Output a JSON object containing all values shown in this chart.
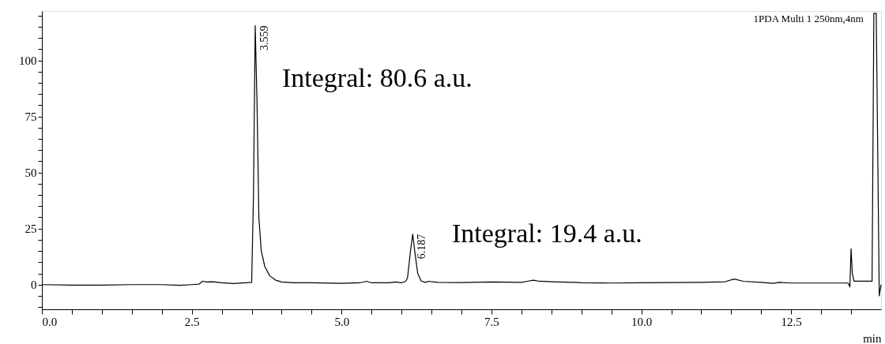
{
  "chart_data": {
    "type": "line",
    "xlabel": "min",
    "xlim": [
      0,
      14.0
    ],
    "ylim": [
      -11,
      122
    ],
    "xticks": [
      {
        "value": 0,
        "label": "0.0"
      },
      {
        "value": 0.5,
        "label": null
      },
      {
        "value": 1,
        "label": null
      },
      {
        "value": 1.5,
        "label": null
      },
      {
        "value": 2,
        "label": null
      },
      {
        "value": 2.5,
        "label": "2.5"
      },
      {
        "value": 3,
        "label": null
      },
      {
        "value": 3.5,
        "label": null
      },
      {
        "value": 4,
        "label": null
      },
      {
        "value": 4.5,
        "label": null
      },
      {
        "value": 5,
        "label": "5.0"
      },
      {
        "value": 5.5,
        "label": null
      },
      {
        "value": 6,
        "label": null
      },
      {
        "value": 6.5,
        "label": null
      },
      {
        "value": 7,
        "label": null
      },
      {
        "value": 7.5,
        "label": "7.5"
      },
      {
        "value": 8,
        "label": null
      },
      {
        "value": 8.5,
        "label": null
      },
      {
        "value": 9,
        "label": null
      },
      {
        "value": 9.5,
        "label": null
      },
      {
        "value": 10,
        "label": "10.0"
      },
      {
        "value": 10.5,
        "label": null
      },
      {
        "value": 11,
        "label": null
      },
      {
        "value": 11.5,
        "label": null
      },
      {
        "value": 12,
        "label": null
      },
      {
        "value": 12.5,
        "label": "12.5"
      },
      {
        "value": 13,
        "label": null
      },
      {
        "value": 13.5,
        "label": null
      }
    ],
    "yticks": [
      {
        "value": -10,
        "label": null
      },
      {
        "value": -5,
        "label": null
      },
      0,
      {
        "value": 5,
        "label": null
      },
      {
        "value": 10,
        "label": null
      },
      {
        "value": 15,
        "label": null
      },
      {
        "value": 20,
        "label": null
      },
      25,
      {
        "value": 30,
        "label": null
      },
      {
        "value": 35,
        "label": null
      },
      {
        "value": 40,
        "label": null
      },
      {
        "value": 45,
        "label": null
      },
      50,
      {
        "value": 55,
        "label": null
      },
      {
        "value": 60,
        "label": null
      },
      {
        "value": 65,
        "label": null
      },
      {
        "value": 70,
        "label": null
      },
      75,
      {
        "value": 80,
        "label": null
      },
      {
        "value": 85,
        "label": null
      },
      {
        "value": 90,
        "label": null
      },
      {
        "value": 95,
        "label": null
      },
      100,
      {
        "value": 105,
        "label": null
      },
      {
        "value": 110,
        "label": null
      },
      {
        "value": 115,
        "label": null
      },
      {
        "value": 120,
        "label": null
      }
    ],
    "grid": false,
    "series": [
      {
        "color": "#000000",
        "x": [
          0,
          0.5,
          1.0,
          1.5,
          2.0,
          2.3,
          2.5,
          2.62,
          2.68,
          2.75,
          2.85,
          3.0,
          3.2,
          3.4,
          3.5,
          3.53,
          3.559,
          3.59,
          3.62,
          3.66,
          3.72,
          3.8,
          3.9,
          4.0,
          4.2,
          4.5,
          5.0,
          5.3,
          5.42,
          5.5,
          5.8,
          5.9,
          6.0,
          6.07,
          6.1,
          6.15,
          6.187,
          6.22,
          6.27,
          6.33,
          6.4,
          6.45,
          6.6,
          7.0,
          7.5,
          8.0,
          8.1,
          8.2,
          8.3,
          8.6,
          8.9,
          9.0,
          9.5,
          10.0,
          10.5,
          11.0,
          11.4,
          11.55,
          11.7,
          12.0,
          12.2,
          12.3,
          12.5,
          13.0,
          13.45,
          13.48,
          13.5,
          13.52,
          13.55,
          13.85,
          13.88,
          13.92,
          13.97,
          14.0
        ],
        "values": [
          0,
          -0.2,
          -0.2,
          0,
          0,
          -0.3,
          0,
          0.2,
          1.5,
          1.2,
          1.3,
          0.8,
          0.5,
          0.8,
          1,
          40,
          115.5,
          80,
          30,
          15,
          8,
          4,
          2,
          1.2,
          0.8,
          0.8,
          0.6,
          0.8,
          1.5,
          0.8,
          0.8,
          1.2,
          0.8,
          1.5,
          3,
          15,
          22.5,
          15,
          5,
          1.5,
          1,
          1.5,
          1,
          0.9,
          1.2,
          1,
          1.5,
          2,
          1.5,
          1.2,
          1,
          0.8,
          0.7,
          0.8,
          0.9,
          1,
          1.3,
          2.5,
          1.5,
          1.0,
          0.6,
          1,
          0.7,
          0.7,
          0.7,
          -1,
          16,
          5,
          1.5,
          1.5,
          121,
          121,
          -5,
          0
        ]
      }
    ],
    "annotations": [
      {
        "text": "3.559",
        "x": 3.559,
        "y": 115.5
      },
      {
        "text": "6.187",
        "x": 6.187,
        "y": 22.5
      },
      "Integral: 80.6 a.u.",
      "Integral: 19.4 a.u.",
      "1PDA Multi 1 250nm,4nm"
    ]
  }
}
